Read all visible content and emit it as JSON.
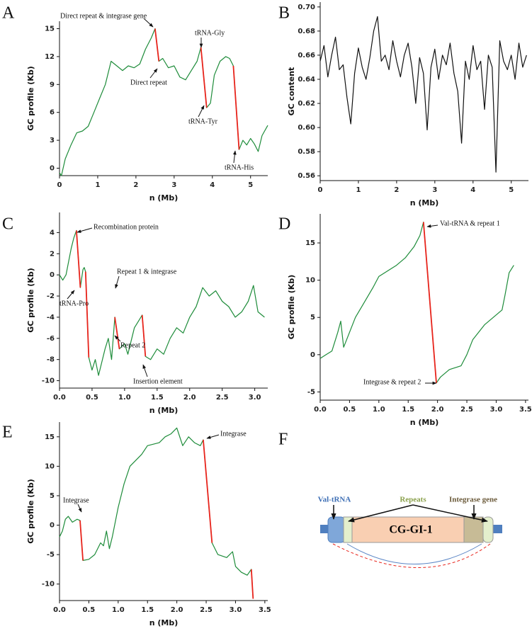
{
  "chart_data": [
    {
      "type": "line",
      "panel": "A",
      "xlabel": "n (Mb)",
      "ylabel": "GC profile (Kb)",
      "x": [
        0,
        0.05,
        0.15,
        0.3,
        0.45,
        0.6,
        0.75,
        0.9,
        1.05,
        1.2,
        1.35,
        1.5,
        1.65,
        1.8,
        1.95,
        2.1,
        2.25,
        2.4,
        2.5,
        2.6,
        2.7,
        2.85,
        3.0,
        3.15,
        3.3,
        3.45,
        3.6,
        3.7,
        3.85,
        3.95,
        4.05,
        4.2,
        4.35,
        4.45,
        4.55,
        4.7,
        4.8,
        4.9,
        5.0,
        5.1,
        5.2,
        5.3,
        5.45
      ],
      "series": [
        {
          "color": "#1e8c3a",
          "values": [
            -0.5,
            -0.8,
            1,
            2.5,
            3.8,
            4,
            4.5,
            6,
            7.5,
            9,
            11.5,
            11,
            10.5,
            11,
            10.8,
            11.2,
            12.8,
            14,
            15,
            11.5,
            11.8,
            10.8,
            11,
            9.8,
            9.5,
            10.5,
            11.5,
            13,
            6.5,
            7,
            10,
            11.5,
            12,
            11.8,
            11,
            2,
            3,
            2.5,
            3.2,
            2.6,
            1.8,
            3.5,
            4.6
          ]
        },
        {
          "color": "#e8241c",
          "values": [
            null,
            null,
            null,
            null,
            null,
            null,
            null,
            null,
            null,
            null,
            null,
            null,
            null,
            null,
            null,
            null,
            null,
            null,
            15,
            11.5,
            null,
            null,
            null,
            null,
            null,
            null,
            null,
            13,
            6.5,
            null,
            null,
            null,
            null,
            null,
            11,
            2,
            null,
            null,
            null,
            null,
            null,
            null,
            null
          ]
        }
      ],
      "xlim": [
        0,
        5.45
      ],
      "ylim": [
        -0.8,
        15.8
      ],
      "xticks": [
        0,
        1,
        2,
        3,
        4,
        5
      ],
      "yticks": [
        0,
        3,
        6,
        9,
        12,
        15
      ],
      "annotations": [
        "Direct repeat & integrase gene",
        "Direct repeat",
        "tRNA-Gly",
        "tRNA-Tyr",
        "tRNA-His"
      ]
    },
    {
      "type": "line",
      "panel": "B",
      "xlabel": "n (Mb)",
      "ylabel": "GC content",
      "x": [
        0,
        0.1,
        0.2,
        0.3,
        0.4,
        0.5,
        0.6,
        0.7,
        0.8,
        0.9,
        1.0,
        1.1,
        1.2,
        1.3,
        1.4,
        1.5,
        1.6,
        1.7,
        1.8,
        1.9,
        2.0,
        2.1,
        2.2,
        2.3,
        2.4,
        2.5,
        2.6,
        2.7,
        2.8,
        2.9,
        3.0,
        3.1,
        3.2,
        3.3,
        3.4,
        3.5,
        3.6,
        3.7,
        3.8,
        3.9,
        4.0,
        4.1,
        4.2,
        4.3,
        4.4,
        4.5,
        4.6,
        4.7,
        4.8,
        4.9,
        5.0,
        5.1,
        5.2,
        5.3,
        5.4
      ],
      "series": [
        {
          "color": "#111111",
          "values": [
            0.655,
            0.668,
            0.642,
            0.66,
            0.675,
            0.648,
            0.652,
            0.625,
            0.603,
            0.645,
            0.666,
            0.65,
            0.64,
            0.658,
            0.68,
            0.692,
            0.655,
            0.66,
            0.648,
            0.672,
            0.655,
            0.642,
            0.66,
            0.67,
            0.65,
            0.62,
            0.658,
            0.645,
            0.598,
            0.65,
            0.665,
            0.64,
            0.66,
            0.652,
            0.67,
            0.645,
            0.63,
            0.587,
            0.655,
            0.64,
            0.668,
            0.648,
            0.655,
            0.615,
            0.66,
            0.65,
            0.563,
            0.672,
            0.655,
            0.648,
            0.66,
            0.64,
            0.67,
            0.65,
            0.66
          ]
        }
      ],
      "xlim": [
        0,
        5.45
      ],
      "ylim": [
        0.556,
        0.704
      ],
      "xticks": [
        0,
        1,
        2,
        3,
        4,
        5
      ],
      "yticks": [
        {
          "value": 0.56,
          "label": "0.56"
        },
        {
          "value": 0.58,
          "label": "0.58"
        },
        {
          "value": 0.6,
          "label": "0.60"
        },
        {
          "value": 0.62,
          "label": "0.62"
        },
        {
          "value": 0.64,
          "label": "0.64"
        },
        {
          "value": 0.66,
          "label": "0.66"
        },
        {
          "value": 0.68,
          "label": "0.68"
        },
        {
          "value": 0.7,
          "label": "0.70"
        }
      ],
      "annotations": []
    },
    {
      "type": "line",
      "panel": "C",
      "xlabel": "n (Mb)",
      "ylabel": "GC profile (Kb)",
      "x": [
        0,
        0.05,
        0.1,
        0.18,
        0.22,
        0.26,
        0.32,
        0.36,
        0.38,
        0.4,
        0.45,
        0.5,
        0.55,
        0.6,
        0.7,
        0.75,
        0.8,
        0.85,
        0.92,
        1.0,
        1.05,
        1.15,
        1.2,
        1.27,
        1.32,
        1.4,
        1.5,
        1.6,
        1.7,
        1.8,
        1.9,
        2.0,
        2.1,
        2.2,
        2.3,
        2.4,
        2.5,
        2.6,
        2.7,
        2.8,
        2.9,
        2.98,
        3.05,
        3.15
      ],
      "series": [
        {
          "color": "#1e8c3a",
          "values": [
            0,
            -0.5,
            0,
            2.5,
            3.5,
            4.2,
            -1.2,
            0.5,
            0.7,
            0.3,
            -7.8,
            -9,
            -8,
            -9.5,
            -7,
            -6,
            -8,
            -4,
            -7,
            -6.5,
            -7.5,
            -5,
            -4.5,
            -3.8,
            -7.7,
            -8,
            -7,
            -7.5,
            -6,
            -5,
            -5.5,
            -4,
            -3,
            -1.2,
            -2,
            -1.5,
            -2.5,
            -3,
            -4,
            -3.5,
            -2.5,
            -1,
            -3.5,
            -4
          ]
        },
        {
          "color": "#e8241c",
          "values": [
            null,
            null,
            null,
            null,
            null,
            4.2,
            -1.2,
            null,
            null,
            0.3,
            -7.8,
            null,
            null,
            null,
            null,
            null,
            null,
            -4,
            -7,
            null,
            null,
            null,
            null,
            -3.8,
            -7.7,
            null,
            null,
            null,
            null,
            null,
            null,
            null,
            null,
            null,
            null,
            null,
            null,
            null,
            null,
            null,
            null,
            null,
            null,
            null
          ]
        }
      ],
      "xlim": [
        0,
        3.2
      ],
      "ylim": [
        -10.7,
        5.9
      ],
      "xticks": [
        {
          "value": 0,
          "label": "0.0"
        },
        {
          "value": 0.5,
          "label": "0.5"
        },
        {
          "value": 1,
          "label": "1.0"
        },
        {
          "value": 1.5,
          "label": "1.5"
        },
        {
          "value": 2,
          "label": "2.0"
        },
        {
          "value": 2.5,
          "label": "2.5"
        },
        {
          "value": 3,
          "label": "3.0"
        }
      ],
      "yticks": [
        -10,
        -8,
        -6,
        -4,
        -2,
        0,
        2,
        4
      ],
      "annotations": [
        "Recombination protein",
        "tRNA-Pro",
        "Repeat 1 & integrase",
        "Repeat 2",
        "Insertion element"
      ]
    },
    {
      "type": "line",
      "panel": "D",
      "xlabel": "n (Mb)",
      "ylabel": "GC profile (Kb)",
      "x": [
        0,
        0.1,
        0.2,
        0.3,
        0.35,
        0.4,
        0.5,
        0.6,
        0.75,
        0.9,
        1.0,
        1.1,
        1.3,
        1.45,
        1.6,
        1.7,
        1.76,
        1.98,
        2.05,
        2.2,
        2.4,
        2.5,
        2.6,
        2.8,
        2.95,
        3.1,
        3.15,
        3.22,
        3.3
      ],
      "series": [
        {
          "color": "#1e8c3a",
          "values": [
            -0.5,
            0,
            0.5,
            3,
            4.5,
            1,
            3,
            5,
            7,
            9,
            10.5,
            11,
            12,
            13,
            14.5,
            16,
            17.8,
            -3.8,
            -3,
            -2,
            -1.5,
            0,
            2,
            4,
            5,
            6,
            8,
            11,
            12
          ]
        },
        {
          "color": "#e8241c",
          "values": [
            null,
            null,
            null,
            null,
            null,
            null,
            null,
            null,
            null,
            null,
            null,
            null,
            null,
            null,
            null,
            null,
            17.8,
            -3.8,
            null,
            null,
            null,
            null,
            null,
            null,
            null,
            null,
            null,
            null,
            null
          ]
        }
      ],
      "xlim": [
        0,
        3.55
      ],
      "ylim": [
        -6.1,
        18.9
      ],
      "xticks": [
        {
          "value": 0,
          "label": "0.0"
        },
        {
          "value": 0.5,
          "label": "0.5"
        },
        {
          "value": 1,
          "label": "1.0"
        },
        {
          "value": 1.5,
          "label": "1.5"
        },
        {
          "value": 2,
          "label": "2.0"
        },
        {
          "value": 2.5,
          "label": "2.5"
        },
        {
          "value": 3,
          "label": "3.0"
        },
        {
          "value": 3.5,
          "label": "3.5"
        }
      ],
      "yticks": [
        -5,
        0,
        5,
        10,
        15
      ],
      "annotations": [
        "Val-tRNA & repeat 1",
        "Integrase & repeat 2"
      ]
    },
    {
      "type": "line",
      "panel": "E",
      "xlabel": "n (Mb)",
      "ylabel": "GC profile (Kb)",
      "x": [
        0,
        0.05,
        0.1,
        0.15,
        0.22,
        0.3,
        0.35,
        0.4,
        0.5,
        0.6,
        0.7,
        0.75,
        0.8,
        0.85,
        0.9,
        1.0,
        1.1,
        1.2,
        1.4,
        1.5,
        1.7,
        1.8,
        1.9,
        2.0,
        2.1,
        2.2,
        2.3,
        2.4,
        2.45,
        2.6,
        2.7,
        2.85,
        2.95,
        3.0,
        3.1,
        3.2,
        3.27,
        3.3
      ],
      "series": [
        {
          "color": "#1e8c3a",
          "values": [
            -2,
            -1,
            1,
            1.5,
            0.5,
            1,
            0.8,
            -6,
            -5.8,
            -5,
            -3,
            -3.5,
            -1,
            -4,
            -2,
            3,
            7,
            10,
            12,
            13.5,
            14,
            15,
            15.5,
            16.5,
            13.5,
            15,
            14,
            13.5,
            14.5,
            -3,
            -5,
            -5.5,
            -4.5,
            -7,
            -8,
            -8.5,
            -7.5,
            -12.5
          ]
        },
        {
          "color": "#e8241c",
          "values": [
            null,
            null,
            null,
            null,
            null,
            null,
            0.8,
            -6,
            null,
            null,
            null,
            null,
            null,
            null,
            null,
            null,
            null,
            null,
            null,
            null,
            null,
            null,
            null,
            null,
            null,
            null,
            null,
            null,
            14.5,
            -3,
            null,
            null,
            null,
            null,
            null,
            null,
            -7.5,
            -12.5
          ]
        }
      ],
      "xlim": [
        0,
        3.55
      ],
      "ylim": [
        -12.8,
        17.5
      ],
      "xticks": [
        {
          "value": 0,
          "label": "0.0"
        },
        {
          "value": 0.5,
          "label": "0.5"
        },
        {
          "value": 1,
          "label": "1.0"
        },
        {
          "value": 1.5,
          "label": "1.5"
        },
        {
          "value": 2,
          "label": "2.0"
        },
        {
          "value": 2.5,
          "label": "2.5"
        },
        {
          "value": 3,
          "label": "3.0"
        },
        {
          "value": 3.5,
          "label": "3.5"
        }
      ],
      "yticks": [
        -10,
        -5,
        0,
        5,
        10,
        15
      ],
      "annotations": [
        "Integrase",
        "Integrase"
      ]
    }
  ],
  "diagram": {
    "panel": "F",
    "left_label": "Val-tRNA",
    "top_label": "Repeats",
    "right_label": "Integrase gene",
    "island": "CG-GI-1"
  }
}
